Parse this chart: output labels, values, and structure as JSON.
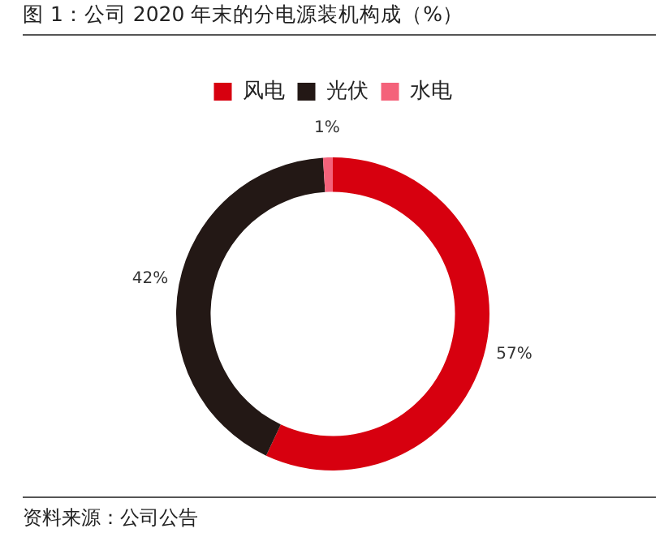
{
  "chart_data": {
    "type": "donut",
    "title": "图 1：公司 2020 年末的分电源装机构成（%）",
    "categories": [
      "风电",
      "光伏",
      "水电"
    ],
    "values": [
      57,
      42,
      1
    ],
    "colors": [
      "#d7000f",
      "#231815",
      "#f4627a"
    ],
    "value_labels": [
      "57%",
      "42%",
      "1%"
    ],
    "legend": "top",
    "annotations": [
      "资料来源：公司公告"
    ]
  }
}
